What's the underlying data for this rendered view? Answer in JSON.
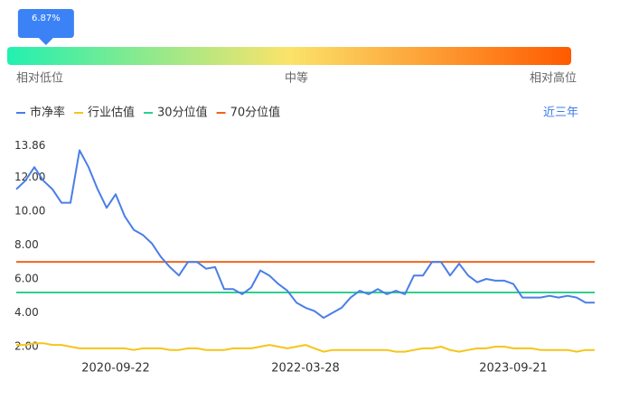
{
  "gauge": {
    "value": 6.87,
    "value_label": "6.87%",
    "lim": [
      0,
      100
    ],
    "min_label": "相对低位",
    "mid_label": "中等",
    "max_label": "相对高位"
  },
  "period": "近三年",
  "chart_data": {
    "type": "line",
    "categories": [
      null,
      null,
      null,
      null,
      null,
      null,
      null,
      null,
      null,
      null,
      null,
      "2020-09-22",
      null,
      null,
      null,
      null,
      null,
      null,
      null,
      null,
      null,
      null,
      null,
      null,
      null,
      null,
      null,
      null,
      null,
      null,
      null,
      null,
      "2022-03-28",
      null,
      null,
      null,
      null,
      null,
      null,
      null,
      null,
      null,
      null,
      null,
      null,
      null,
      null,
      null,
      null,
      null,
      null,
      null,
      null,
      null,
      null,
      "2023-09-21",
      null,
      null,
      null,
      null,
      null,
      null,
      null,
      null,
      null
    ],
    "series": [
      {
        "name": "市净率",
        "color": "#4a7ee8",
        "values": [
          11.3,
          11.8,
          12.6,
          11.8,
          11.3,
          10.5,
          10.5,
          13.6,
          12.6,
          11.3,
          10.2,
          11.0,
          9.7,
          8.9,
          8.6,
          8.1,
          7.3,
          6.7,
          6.2,
          7.0,
          7.0,
          6.6,
          6.7,
          5.4,
          5.4,
          5.1,
          5.5,
          6.5,
          6.2,
          5.7,
          5.3,
          4.6,
          4.3,
          4.1,
          3.7,
          4.0,
          4.3,
          4.9,
          5.3,
          5.1,
          5.4,
          5.1,
          5.3,
          5.1,
          6.2,
          6.2,
          7.0,
          7.0,
          6.2,
          6.9,
          6.2,
          5.8,
          6.0,
          5.9,
          5.9,
          5.7,
          4.9,
          4.9,
          4.9,
          5.0,
          4.9,
          5.0,
          4.9,
          4.6,
          4.6
        ]
      },
      {
        "name": "行业估值",
        "color": "#f5c518",
        "values": [
          2.1,
          2.1,
          2.2,
          2.2,
          2.1,
          2.1,
          2.0,
          1.9,
          1.9,
          1.9,
          1.9,
          1.9,
          1.9,
          1.8,
          1.9,
          1.9,
          1.9,
          1.8,
          1.8,
          1.9,
          1.9,
          1.8,
          1.8,
          1.8,
          1.9,
          1.9,
          1.9,
          2.0,
          2.1,
          2.0,
          1.9,
          2.0,
          2.1,
          1.9,
          1.7,
          1.8,
          1.8,
          1.8,
          1.8,
          1.8,
          1.8,
          1.8,
          1.7,
          1.7,
          1.8,
          1.9,
          1.9,
          2.0,
          1.8,
          1.7,
          1.8,
          1.9,
          1.9,
          2.0,
          2.0,
          1.9,
          1.9,
          1.9,
          1.8,
          1.8,
          1.8,
          1.8,
          1.7,
          1.8,
          1.8
        ]
      },
      {
        "name": "30分位值",
        "color": "#2ecf8e",
        "values": [
          5.2,
          5.2,
          5.2,
          5.2,
          5.2,
          5.2,
          5.2,
          5.2,
          5.2,
          5.2,
          5.2,
          5.2,
          5.2,
          5.2,
          5.2,
          5.2,
          5.2,
          5.2,
          5.2,
          5.2,
          5.2,
          5.2,
          5.2,
          5.2,
          5.2,
          5.2,
          5.2,
          5.2,
          5.2,
          5.2,
          5.2,
          5.2,
          5.2,
          5.2,
          5.2,
          5.2,
          5.2,
          5.2,
          5.2,
          5.2,
          5.2,
          5.2,
          5.2,
          5.2,
          5.2,
          5.2,
          5.2,
          5.2,
          5.2,
          5.2,
          5.2,
          5.2,
          5.2,
          5.2,
          5.2,
          5.2,
          5.2,
          5.2,
          5.2,
          5.2,
          5.2,
          5.2,
          5.2,
          5.2,
          5.2
        ]
      },
      {
        "name": "70分位值",
        "color": "#f0641e",
        "values": [
          7.01,
          7.01,
          7.01,
          7.01,
          7.01,
          7.01,
          7.01,
          7.01,
          7.01,
          7.01,
          7.01,
          7.01,
          7.01,
          7.01,
          7.01,
          7.01,
          7.01,
          7.01,
          7.01,
          7.01,
          7.01,
          7.01,
          7.01,
          7.01,
          7.01,
          7.01,
          7.01,
          7.01,
          7.01,
          7.01,
          7.01,
          7.01,
          7.01,
          7.01,
          7.01,
          7.01,
          7.01,
          7.01,
          7.01,
          7.01,
          7.01,
          7.01,
          7.01,
          7.01,
          7.01,
          7.01,
          7.01,
          7.01,
          7.01,
          7.01,
          7.01,
          7.01,
          7.01,
          7.01,
          7.01,
          7.01,
          7.01,
          7.01,
          7.01,
          7.01,
          7.01,
          7.01,
          7.01,
          7.01,
          7.01
        ]
      }
    ],
    "ylim": [
      1.4,
      13.86
    ],
    "yticks": [
      {
        "value": 2,
        "label": "2.00"
      },
      {
        "value": 4,
        "label": "4.00"
      },
      {
        "value": 6,
        "label": "6.00"
      },
      {
        "value": 8,
        "label": "8.00"
      },
      {
        "value": 10,
        "label": "10.00"
      },
      {
        "value": 12,
        "label": "12.00"
      },
      13.86
    ]
  }
}
